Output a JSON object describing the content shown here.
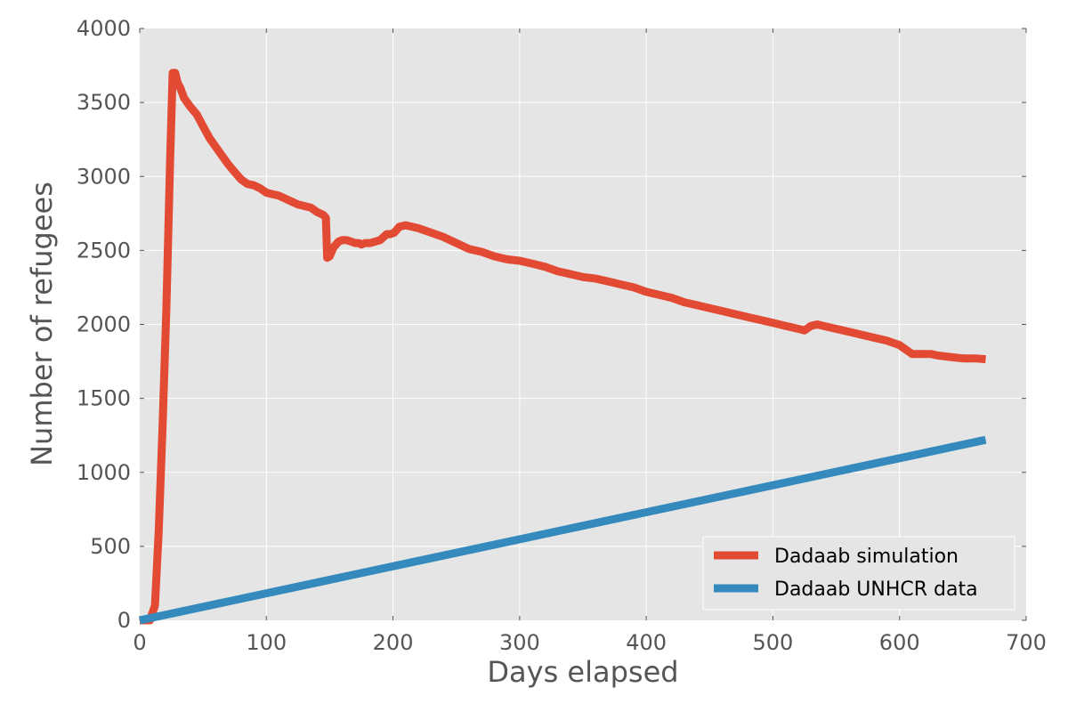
{
  "chart_data": {
    "type": "line",
    "title": "",
    "xlabel": "Days elapsed",
    "ylabel": "Number of refugees",
    "xlim": [
      0,
      700
    ],
    "ylim": [
      0,
      4000
    ],
    "xticks": [
      0,
      100,
      200,
      300,
      400,
      500,
      600,
      700
    ],
    "yticks": [
      0,
      500,
      1000,
      1500,
      2000,
      2500,
      3000,
      3500,
      4000
    ],
    "grid": true,
    "legend_position": "lower-right",
    "background_color": "#e5e5e5",
    "series": [
      {
        "name": "Dadaab simulation",
        "color": "#e24a33",
        "points": [
          [
            0,
            0
          ],
          [
            8,
            0
          ],
          [
            12,
            100
          ],
          [
            15,
            600
          ],
          [
            18,
            1300
          ],
          [
            21,
            2100
          ],
          [
            24,
            3100
          ],
          [
            26,
            3700
          ],
          [
            28,
            3700
          ],
          [
            30,
            3630
          ],
          [
            32,
            3600
          ],
          [
            35,
            3530
          ],
          [
            40,
            3470
          ],
          [
            45,
            3420
          ],
          [
            50,
            3340
          ],
          [
            55,
            3260
          ],
          [
            60,
            3200
          ],
          [
            65,
            3140
          ],
          [
            70,
            3080
          ],
          [
            75,
            3030
          ],
          [
            80,
            2980
          ],
          [
            85,
            2950
          ],
          [
            90,
            2940
          ],
          [
            95,
            2920
          ],
          [
            100,
            2890
          ],
          [
            105,
            2880
          ],
          [
            110,
            2870
          ],
          [
            115,
            2850
          ],
          [
            120,
            2830
          ],
          [
            125,
            2810
          ],
          [
            130,
            2800
          ],
          [
            135,
            2790
          ],
          [
            140,
            2760
          ],
          [
            145,
            2740
          ],
          [
            147,
            2720
          ],
          [
            148,
            2450
          ],
          [
            150,
            2460
          ],
          [
            153,
            2520
          ],
          [
            157,
            2560
          ],
          [
            160,
            2570
          ],
          [
            163,
            2570
          ],
          [
            167,
            2560
          ],
          [
            170,
            2550
          ],
          [
            173,
            2550
          ],
          [
            175,
            2540
          ],
          [
            178,
            2550
          ],
          [
            182,
            2550
          ],
          [
            186,
            2560
          ],
          [
            190,
            2570
          ],
          [
            195,
            2610
          ],
          [
            198,
            2610
          ],
          [
            201,
            2620
          ],
          [
            205,
            2660
          ],
          [
            210,
            2670
          ],
          [
            215,
            2660
          ],
          [
            220,
            2650
          ],
          [
            230,
            2620
          ],
          [
            240,
            2590
          ],
          [
            250,
            2550
          ],
          [
            260,
            2510
          ],
          [
            270,
            2490
          ],
          [
            280,
            2460
          ],
          [
            290,
            2440
          ],
          [
            300,
            2430
          ],
          [
            310,
            2410
          ],
          [
            320,
            2390
          ],
          [
            330,
            2360
          ],
          [
            340,
            2340
          ],
          [
            350,
            2320
          ],
          [
            360,
            2310
          ],
          [
            370,
            2290
          ],
          [
            380,
            2270
          ],
          [
            390,
            2250
          ],
          [
            400,
            2220
          ],
          [
            410,
            2200
          ],
          [
            420,
            2180
          ],
          [
            430,
            2150
          ],
          [
            440,
            2130
          ],
          [
            450,
            2110
          ],
          [
            460,
            2090
          ],
          [
            470,
            2070
          ],
          [
            480,
            2050
          ],
          [
            490,
            2030
          ],
          [
            500,
            2010
          ],
          [
            510,
            1990
          ],
          [
            520,
            1970
          ],
          [
            525,
            1960
          ],
          [
            530,
            1990
          ],
          [
            535,
            2000
          ],
          [
            540,
            1990
          ],
          [
            550,
            1970
          ],
          [
            560,
            1950
          ],
          [
            570,
            1930
          ],
          [
            580,
            1910
          ],
          [
            590,
            1890
          ],
          [
            600,
            1860
          ],
          [
            605,
            1830
          ],
          [
            610,
            1800
          ],
          [
            620,
            1800
          ],
          [
            625,
            1800
          ],
          [
            630,
            1790
          ],
          [
            640,
            1780
          ],
          [
            650,
            1770
          ],
          [
            660,
            1770
          ],
          [
            668,
            1765
          ]
        ]
      },
      {
        "name": "Dadaab UNHCR data",
        "color": "#348abd",
        "points": [
          [
            0,
            0
          ],
          [
            668,
            1220
          ]
        ]
      }
    ]
  }
}
